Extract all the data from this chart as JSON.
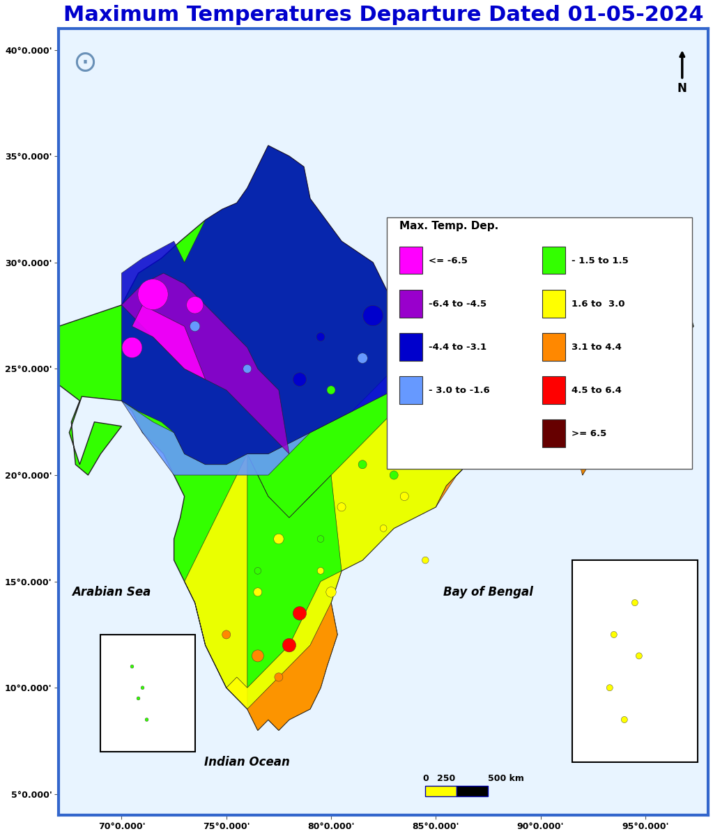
{
  "title": "Maximum Temperatures Departure Dated 01-05-2024",
  "title_color": "#0000CD",
  "title_fontsize": 22,
  "background_color": "#FFFFFF",
  "border_color": "#3366CC",
  "map_bg_color": "#E8F4FF",
  "legend_title": "Max. Temp. Dep.",
  "legend_items": [
    {
      "label": "<= -6.5",
      "color": "#FF00FF"
    },
    {
      "label": "-6.4 to -4.5",
      "color": "#9900CC"
    },
    {
      "label": "-4.4 to -3.1",
      "color": "#0000CC"
    },
    {
      "label": "- 3.0 to -1.6",
      "color": "#6699FF"
    },
    {
      "label": "- 1.5 to 1.5",
      "color": "#33FF00"
    },
    {
      "label": "1.6 to  3.0",
      "color": "#FFFF00"
    },
    {
      "label": "3.1 to 4.4",
      "color": "#FF8800"
    },
    {
      "label": "4.5 to 6.4",
      "color": "#FF0000"
    },
    {
      "label": ">= 6.5",
      "color": "#660000"
    }
  ],
  "ytick_labels": [
    "5°0.000'",
    "10°0.000'",
    "15°0.000'",
    "20°0.000'",
    "25°0.000'",
    "30°0.000'",
    "35°0.000'",
    "40°0.000'"
  ],
  "xtick_labels": [
    "70°0.000'",
    "75°0.000'",
    "80°0.000'",
    "85°0.000'",
    "90°0.000'",
    "95°0.000'"
  ],
  "text_arabian_sea": "Arabian Sea",
  "text_bay_of_bengal": "Bay of Bengal",
  "text_indian_ocean": "Indian Ocean",
  "scale_label": "0    250    500 km",
  "fig_width": 10.23,
  "fig_height": 12.0
}
